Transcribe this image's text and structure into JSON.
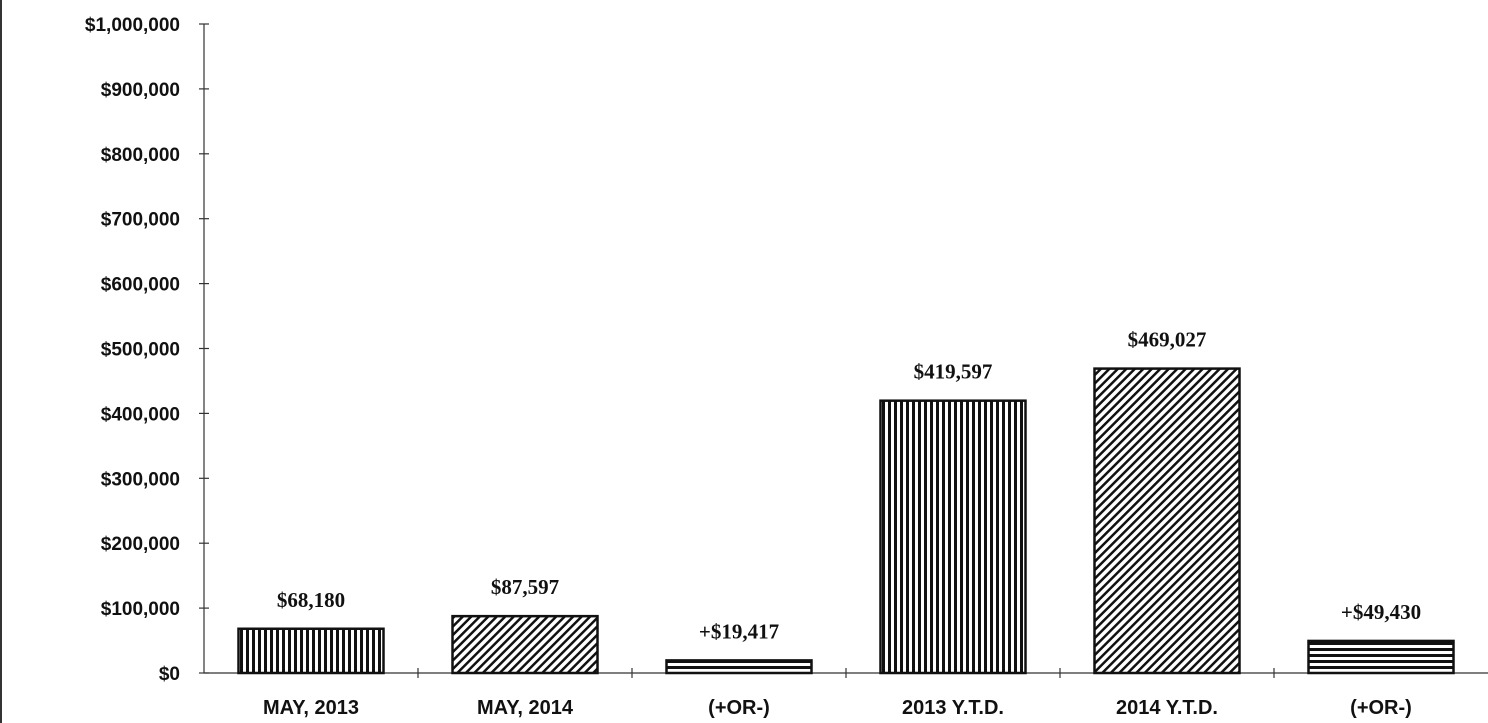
{
  "chart_data": {
    "type": "bar",
    "categories": [
      "MAY, 2013",
      "MAY, 2014",
      "(+OR-)",
      "2013 Y.T.D.",
      "2014 Y.T.D.",
      "(+OR-)"
    ],
    "values": [
      68180,
      87597,
      19417,
      419597,
      469027,
      49430
    ],
    "data_labels": [
      "$68,180",
      "$87,597",
      "+$19,417",
      "$419,597",
      "$469,027",
      "+$49,430"
    ],
    "patterns": [
      "vertical",
      "diagonal",
      "horizontal",
      "vertical",
      "diagonal",
      "horizontal"
    ],
    "ylim": [
      0,
      1000000
    ],
    "yticks": [
      "$0",
      "$100,000",
      "$200,000",
      "$300,000",
      "$400,000",
      "$500,000",
      "$600,000",
      "$700,000",
      "$800,000",
      "$900,000",
      "$1,000,000"
    ],
    "grid": false,
    "colors": {
      "ink": "#111111",
      "background": "#ffffff"
    }
  }
}
